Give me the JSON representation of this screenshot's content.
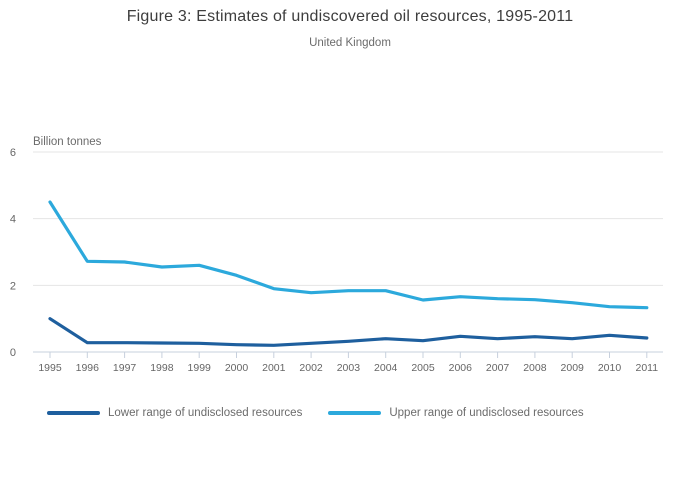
{
  "chart_data": {
    "type": "line",
    "title": "Figure 3: Estimates of undiscovered oil resources, 1995-2011",
    "subtitle": "United Kingdom",
    "ylabel": "Billion tonnes",
    "xlabel": "",
    "categories": [
      "1995",
      "1996",
      "1997",
      "1998",
      "1999",
      "2000",
      "2001",
      "2002",
      "2003",
      "2004",
      "2005",
      "2006",
      "2007",
      "2008",
      "2009",
      "2010",
      "2011"
    ],
    "yticks": [
      0,
      2,
      4,
      6
    ],
    "ylim": [
      0,
      6
    ],
    "grid": true,
    "legend_position": "bottom",
    "series": [
      {
        "name": "Lower range of undisclosed resources",
        "color": "#1e5f9e",
        "values": [
          1.0,
          0.28,
          0.28,
          0.27,
          0.26,
          0.22,
          0.2,
          0.26,
          0.32,
          0.4,
          0.34,
          0.47,
          0.4,
          0.46,
          0.4,
          0.5,
          0.42
        ]
      },
      {
        "name": "Upper range of undisclosed resources",
        "color": "#2ca9dc",
        "values": [
          4.5,
          2.72,
          2.7,
          2.55,
          2.6,
          2.3,
          1.9,
          1.78,
          1.84,
          1.84,
          1.56,
          1.66,
          1.6,
          1.57,
          1.48,
          1.36,
          1.33
        ]
      }
    ],
    "colors": {
      "grid_line": "#e5e5e5",
      "axis_line": "#c7d0dd",
      "tick_label": "#666666",
      "title_text": "#3d3d3d",
      "subtitle_text": "#6b6b6b"
    }
  }
}
